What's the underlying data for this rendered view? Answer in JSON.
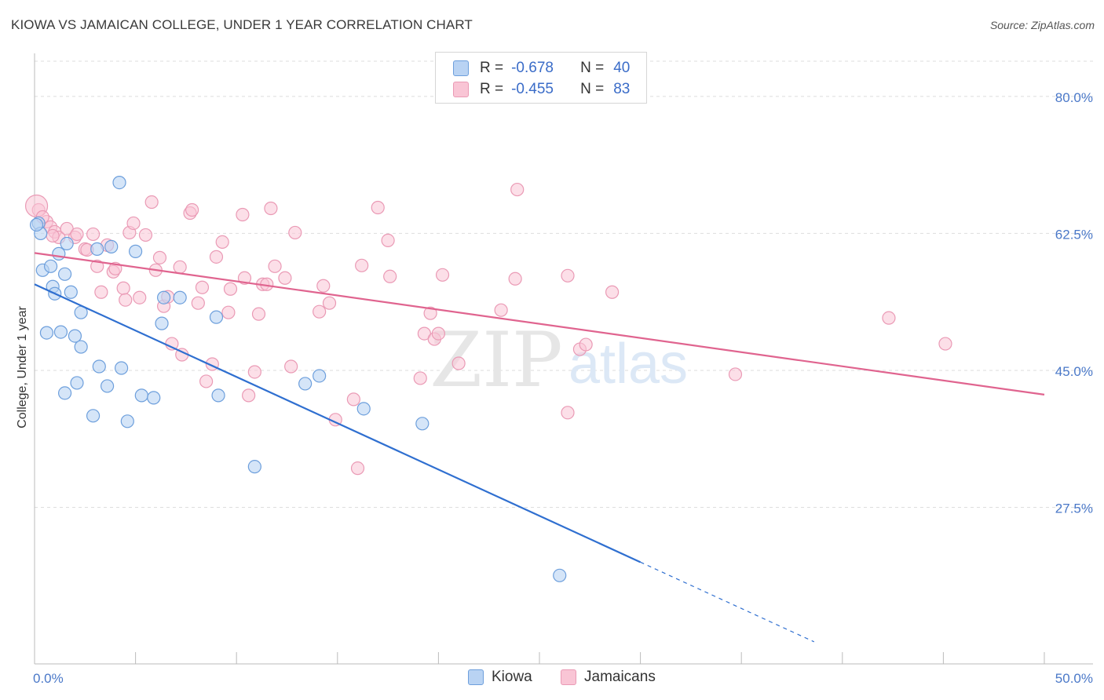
{
  "header": {
    "title": "KIOWA VS JAMAICAN COLLEGE, UNDER 1 YEAR CORRELATION CHART",
    "source": "Source: ZipAtlas.com"
  },
  "watermark": {
    "part1": "ZIP",
    "part2": "atlas"
  },
  "legend": {
    "rows": [
      {
        "r_label": "R =",
        "r_value": "-0.678",
        "n_label": "N =",
        "n_value": "40"
      },
      {
        "r_label": "R =",
        "r_value": "-0.455",
        "n_label": "N =",
        "n_value": "83"
      }
    ]
  },
  "bottom_legend": {
    "kiowa": "Kiowa",
    "jamaicans": "Jamaicans"
  },
  "colors": {
    "kiowa_fill": "#b9d3f3",
    "kiowa_stroke": "#6d9fdc",
    "kiowa_line": "#2f6fd0",
    "jam_fill": "#f9c5d5",
    "jam_stroke": "#ea9ab5",
    "jam_line": "#e0648f",
    "tick_text": "#4a78c8",
    "grid": "#dddddd"
  },
  "chart_data": {
    "type": "scatter",
    "title": "KIOWA VS JAMAICAN COLLEGE, UNDER 1 YEAR CORRELATION CHART",
    "xlabel": "",
    "ylabel": "College, Under 1 year",
    "xlim": [
      0,
      50
    ],
    "ylim": [
      7.5,
      84.5
    ],
    "x_tick_labels": [
      "0.0%",
      "50.0%"
    ],
    "y_ticks": [
      27.5,
      45.0,
      62.5,
      80.0
    ],
    "y_tick_labels": [
      "27.5%",
      "45.0%",
      "62.5%",
      "80.0%"
    ],
    "grid": true,
    "legend_position": "top-center",
    "series": [
      {
        "name": "Kiowa",
        "r": -0.678,
        "n": 40,
        "trend": {
          "x0": 0,
          "y0": 56.0,
          "x1": 30.0,
          "y1": 20.5,
          "dashed_to_x": 38.6
        },
        "points": [
          [
            0.2,
            63.8
          ],
          [
            0.3,
            62.5
          ],
          [
            0.4,
            57.8
          ],
          [
            0.8,
            58.3
          ],
          [
            0.9,
            55.7
          ],
          [
            1.0,
            54.8
          ],
          [
            1.2,
            59.9
          ],
          [
            1.5,
            57.3
          ],
          [
            1.6,
            61.2
          ],
          [
            1.8,
            55.0
          ],
          [
            2.3,
            52.4
          ],
          [
            2.3,
            48.0
          ],
          [
            0.6,
            49.8
          ],
          [
            1.3,
            49.9
          ],
          [
            2.0,
            49.4
          ],
          [
            3.1,
            60.5
          ],
          [
            3.8,
            60.8
          ],
          [
            4.2,
            69.0
          ],
          [
            5.0,
            60.2
          ],
          [
            6.4,
            54.3
          ],
          [
            7.2,
            54.3
          ],
          [
            6.3,
            51.0
          ],
          [
            9.0,
            51.8
          ],
          [
            1.5,
            42.1
          ],
          [
            2.1,
            43.4
          ],
          [
            3.2,
            45.5
          ],
          [
            4.3,
            45.3
          ],
          [
            3.6,
            43.0
          ],
          [
            5.3,
            41.8
          ],
          [
            5.9,
            41.5
          ],
          [
            9.1,
            41.8
          ],
          [
            2.9,
            39.2
          ],
          [
            4.6,
            38.5
          ],
          [
            13.4,
            43.3
          ],
          [
            14.1,
            44.3
          ],
          [
            16.3,
            40.1
          ],
          [
            19.2,
            38.2
          ],
          [
            10.9,
            32.7
          ],
          [
            26.0,
            18.8
          ],
          [
            0.1,
            63.6
          ]
        ]
      },
      {
        "name": "Jamaicans",
        "r": -0.455,
        "n": 83,
        "trend": {
          "x0": 0,
          "y0": 60.0,
          "x1": 50.0,
          "y1": 41.9
        },
        "points": [
          [
            0.2,
            65.5
          ],
          [
            0.6,
            64.0
          ],
          [
            0.8,
            63.3
          ],
          [
            1.0,
            62.7
          ],
          [
            1.2,
            62.0
          ],
          [
            1.6,
            63.1
          ],
          [
            2.0,
            62.0
          ],
          [
            2.1,
            62.4
          ],
          [
            2.5,
            60.5
          ],
          [
            2.6,
            60.4
          ],
          [
            2.9,
            62.4
          ],
          [
            3.1,
            58.3
          ],
          [
            3.3,
            55.0
          ],
          [
            3.6,
            61.0
          ],
          [
            3.9,
            57.6
          ],
          [
            4.0,
            58.0
          ],
          [
            4.4,
            55.5
          ],
          [
            4.5,
            54.0
          ],
          [
            4.7,
            62.6
          ],
          [
            4.9,
            63.8
          ],
          [
            5.2,
            54.3
          ],
          [
            5.5,
            62.3
          ],
          [
            5.8,
            66.5
          ],
          [
            6.0,
            57.8
          ],
          [
            6.2,
            59.4
          ],
          [
            6.4,
            53.2
          ],
          [
            6.6,
            54.4
          ],
          [
            6.8,
            48.4
          ],
          [
            7.2,
            58.2
          ],
          [
            7.3,
            47.0
          ],
          [
            7.7,
            65.1
          ],
          [
            7.8,
            65.5
          ],
          [
            8.1,
            53.6
          ],
          [
            8.3,
            55.6
          ],
          [
            8.5,
            43.6
          ],
          [
            8.8,
            45.8
          ],
          [
            9.0,
            59.5
          ],
          [
            9.3,
            61.4
          ],
          [
            9.6,
            52.4
          ],
          [
            9.7,
            55.4
          ],
          [
            10.3,
            64.9
          ],
          [
            10.4,
            56.8
          ],
          [
            10.6,
            41.8
          ],
          [
            10.9,
            44.8
          ],
          [
            11.1,
            52.2
          ],
          [
            11.3,
            56.0
          ],
          [
            11.5,
            56.0
          ],
          [
            11.7,
            65.7
          ],
          [
            11.9,
            58.3
          ],
          [
            12.4,
            56.8
          ],
          [
            12.7,
            45.5
          ],
          [
            12.9,
            62.6
          ],
          [
            14.1,
            52.5
          ],
          [
            14.3,
            55.8
          ],
          [
            14.6,
            53.6
          ],
          [
            14.9,
            38.7
          ],
          [
            15.8,
            41.3
          ],
          [
            16.0,
            32.5
          ],
          [
            16.2,
            58.4
          ],
          [
            17.0,
            65.8
          ],
          [
            17.5,
            61.6
          ],
          [
            17.6,
            57.0
          ],
          [
            19.1,
            44.0
          ],
          [
            19.3,
            49.7
          ],
          [
            19.6,
            52.3
          ],
          [
            19.8,
            49.0
          ],
          [
            20.0,
            49.7
          ],
          [
            20.2,
            57.2
          ],
          [
            21.0,
            45.9
          ],
          [
            23.1,
            52.7
          ],
          [
            23.8,
            56.7
          ],
          [
            23.9,
            68.1
          ],
          [
            26.4,
            39.6
          ],
          [
            26.4,
            57.1
          ],
          [
            27.0,
            47.7
          ],
          [
            27.3,
            48.3
          ],
          [
            28.6,
            55.0
          ],
          [
            34.7,
            44.5
          ],
          [
            42.3,
            51.7
          ],
          [
            45.1,
            48.4
          ],
          [
            0.1,
            66.0
          ],
          [
            0.4,
            64.6
          ],
          [
            0.9,
            62.2
          ]
        ]
      }
    ]
  }
}
